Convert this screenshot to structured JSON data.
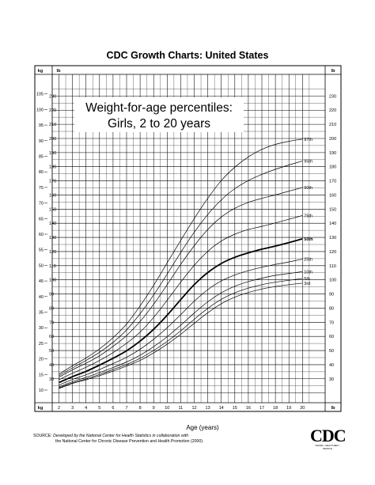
{
  "header": {
    "title": "CDC Growth Charts: United States"
  },
  "source": {
    "label": "SOURCE:",
    "lead": "Developed by the National Center for Health Statistics in collaboration with",
    "line2": "the National Center for Chronic Disease Prevention and Health Promotion (2000)."
  },
  "logo": {
    "text": "CDC",
    "tagline": "SAFER • HEALTHIER • PEOPLE"
  },
  "chart_data": {
    "type": "line",
    "title": "Weight-for-age percentiles:",
    "subtitle": "Girls, 2 to 20 years",
    "xlabel": "Age (years)",
    "x_ticks": [
      2,
      3,
      4,
      5,
      6,
      7,
      8,
      9,
      10,
      11,
      12,
      13,
      14,
      15,
      16,
      17,
      18,
      19,
      20
    ],
    "xlim": [
      1.5,
      20.5
    ],
    "ylim_kg": [
      6,
      108
    ],
    "kg_ticks": [
      10,
      15,
      20,
      25,
      30,
      35,
      40,
      45,
      50,
      55,
      60,
      65,
      70,
      75,
      80,
      85,
      90,
      95,
      100,
      105
    ],
    "lb_ticks": [
      30,
      40,
      50,
      60,
      70,
      80,
      90,
      100,
      110,
      120,
      130,
      140,
      150,
      160,
      170,
      180,
      190,
      200,
      210,
      220,
      230
    ],
    "left_unit_top": "kg",
    "left_unit_top2": "lb",
    "right_unit_top": "lb",
    "left_unit_bottom": "kg",
    "right_unit_bottom": "lb",
    "grid": true,
    "x": [
      2,
      3,
      4,
      5,
      6,
      7,
      8,
      9,
      10,
      11,
      12,
      13,
      14,
      15,
      16,
      17,
      18,
      19,
      20
    ],
    "series": [
      {
        "name": "97th",
        "values": [
          15.1,
          17.8,
          20.3,
          23.2,
          26.8,
          31.2,
          37.0,
          43.6,
          50.8,
          58.0,
          65.0,
          71.5,
          77.2,
          81.5,
          84.8,
          87.2,
          88.8,
          89.8,
          90.5
        ]
      },
      {
        "name": "95th",
        "values": [
          14.6,
          17.1,
          19.5,
          22.1,
          25.3,
          29.3,
          34.5,
          40.5,
          47.2,
          54.1,
          60.6,
          66.3,
          71.0,
          74.6,
          77.2,
          79.2,
          80.8,
          82.2,
          83.5
        ]
      },
      {
        "name": "90th",
        "values": [
          14.1,
          16.5,
          18.6,
          21.0,
          24.0,
          27.5,
          32.0,
          37.5,
          43.8,
          50.3,
          56.3,
          61.5,
          65.5,
          68.3,
          70.2,
          71.5,
          72.6,
          73.8,
          75.0
        ]
      },
      {
        "name": "75th",
        "values": [
          13.3,
          15.4,
          17.3,
          19.5,
          22.0,
          25.0,
          28.6,
          33.3,
          38.8,
          44.6,
          50.0,
          54.5,
          57.8,
          60.0,
          61.5,
          62.5,
          63.6,
          64.8,
          66.0
        ]
      },
      {
        "name": "50th",
        "values": [
          12.4,
          14.3,
          16.0,
          18.0,
          20.2,
          22.6,
          25.7,
          29.5,
          34.0,
          39.0,
          43.8,
          47.7,
          50.6,
          52.6,
          54.0,
          55.2,
          56.2,
          57.3,
          58.5
        ]
      },
      {
        "name": "25th",
        "values": [
          11.6,
          13.4,
          14.9,
          16.6,
          18.5,
          20.5,
          23.1,
          26.3,
          30.0,
          34.2,
          38.5,
          42.2,
          45.0,
          46.9,
          48.3,
          49.4,
          50.3,
          51.1,
          52.0
        ]
      },
      {
        "name": "10th",
        "values": [
          11.0,
          12.7,
          14.1,
          15.6,
          17.2,
          19.0,
          21.2,
          23.9,
          27.1,
          30.8,
          34.7,
          38.3,
          41.2,
          43.3,
          44.8,
          45.9,
          46.8,
          47.4,
          48.0
        ]
      },
      {
        "name": "5th",
        "values": [
          10.7,
          12.3,
          13.6,
          15.0,
          16.6,
          18.2,
          20.2,
          22.7,
          25.6,
          29.0,
          32.7,
          36.2,
          39.1,
          41.2,
          42.7,
          43.8,
          44.6,
          45.2,
          45.8
        ]
      },
      {
        "name": "3rd",
        "values": [
          10.5,
          12.1,
          13.3,
          14.6,
          16.1,
          17.7,
          19.5,
          21.9,
          24.7,
          27.9,
          31.4,
          34.8,
          37.7,
          39.8,
          41.3,
          42.4,
          43.2,
          43.8,
          44.3
        ]
      }
    ],
    "bold_series": "50th"
  }
}
